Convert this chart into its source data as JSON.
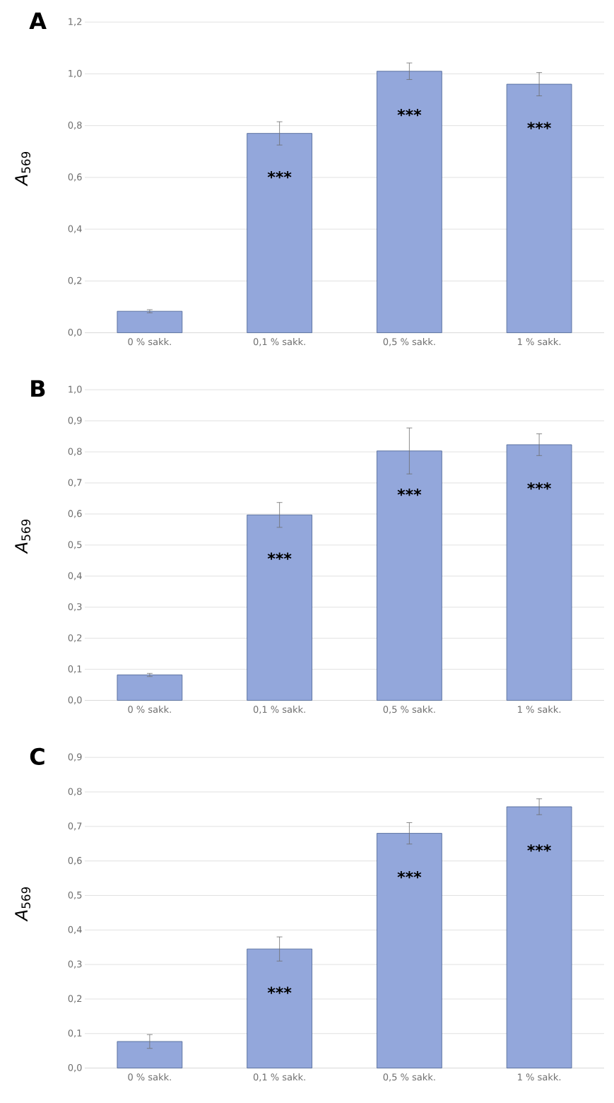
{
  "chart_data": [
    {
      "type": "bar",
      "title": "A",
      "ylabel": "*A*$_{569}$",
      "categories": [
        "0 % sakk.",
        "0,1 % sakk.",
        "0,5 % sakk.",
        "1 % sakk."
      ],
      "values": [
        0.083,
        0.77,
        1.01,
        0.96
      ],
      "errors": [
        0.006,
        0.045,
        0.032,
        0.045
      ],
      "color": "#93a7db",
      "ylim": [
        0,
        1.2
      ],
      "yticks": [
        {
          "value": 0,
          "label": "0,0"
        },
        {
          "value": 0.2,
          "label": "0,2"
        },
        {
          "value": 0.4,
          "label": "0,4"
        },
        {
          "value": 0.6,
          "label": "0,6"
        },
        {
          "value": 0.8,
          "label": "0,8"
        },
        {
          "value": 1.0,
          "label": "1,0"
        },
        {
          "value": 1.2,
          "label": "1,2"
        }
      ],
      "grid": "y",
      "annotations": [
        "***",
        "***",
        "***"
      ]
    },
    {
      "type": "bar",
      "title": "B",
      "ylabel": "*A*$_{569}$",
      "categories": [
        "0 % sakk.",
        "0,1 % sakk.",
        "0,5 % sakk.",
        "1 % sakk."
      ],
      "values": [
        0.082,
        0.597,
        0.803,
        0.823
      ],
      "errors": [
        0.005,
        0.04,
        0.074,
        0.035
      ],
      "color": "#93a7db",
      "ylim": [
        0,
        1.0
      ],
      "yticks": [
        {
          "value": 0,
          "label": "0,0"
        },
        {
          "value": 0.1,
          "label": "0,1"
        },
        {
          "value": 0.2,
          "label": "0,2"
        },
        {
          "value": 0.3,
          "label": "0,3"
        },
        {
          "value": 0.4,
          "label": "0,4"
        },
        {
          "value": 0.5,
          "label": "0,5"
        },
        {
          "value": 0.6,
          "label": "0,6"
        },
        {
          "value": 0.7,
          "label": "0,7"
        },
        {
          "value": 0.8,
          "label": "0,8"
        },
        {
          "value": 0.9,
          "label": "0,9"
        },
        {
          "value": 1.0,
          "label": "1,0"
        }
      ],
      "grid": "y",
      "annotations": [
        "***",
        "***",
        "***"
      ]
    },
    {
      "type": "bar",
      "title": "C",
      "ylabel": "*A*$_{569}$",
      "categories": [
        "0 % sakk.",
        "0,1 % sakk.",
        "0,5 % sakk.",
        "1 % sakk."
      ],
      "values": [
        0.077,
        0.345,
        0.68,
        0.757
      ],
      "errors": [
        0.02,
        0.035,
        0.031,
        0.023
      ],
      "color": "#93a7db",
      "ylim": [
        0,
        0.9
      ],
      "yticks": [
        {
          "value": 0,
          "label": "0,0"
        },
        {
          "value": 0.1,
          "label": "0,1"
        },
        {
          "value": 0.2,
          "label": "0,2"
        },
        {
          "value": 0.3,
          "label": "0,3"
        },
        {
          "value": 0.4,
          "label": "0,4"
        },
        {
          "value": 0.5,
          "label": "0,5"
        },
        {
          "value": 0.6,
          "label": "0,6"
        },
        {
          "value": 0.7,
          "label": "0,7"
        },
        {
          "value": 0.8,
          "label": "0,8"
        },
        {
          "value": 0.9,
          "label": "0,9"
        }
      ],
      "grid": "y",
      "annotations": [
        "***",
        "***",
        "***"
      ]
    }
  ]
}
